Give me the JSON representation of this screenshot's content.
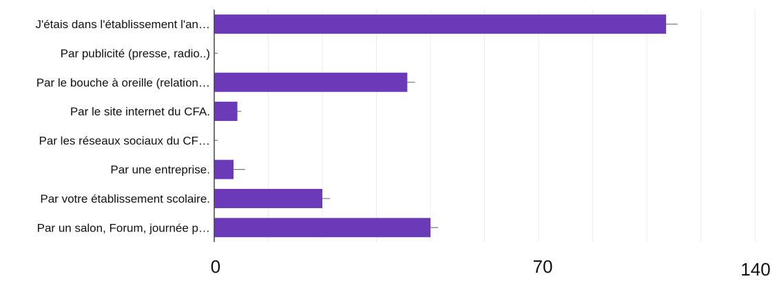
{
  "chart_data": {
    "type": "bar",
    "orientation": "horizontal",
    "categories": [
      "J'étais dans l'établissement l'an…",
      "Par publicité (presse, radio..)",
      "Par le bouche à oreille (relation…",
      "Par le site internet du CFA.",
      "Par les réseaux sociaux du CF…",
      "Par une entreprise.",
      "Par votre établissement scolaire.",
      "Par un salon, Forum, journée p…"
    ],
    "values": [
      117,
      0,
      50,
      6,
      0,
      5,
      28,
      56
    ],
    "error_bars": [
      3,
      0,
      2,
      1,
      0,
      3,
      2,
      2
    ],
    "x_ticks": [
      "0",
      "70",
      "140"
    ],
    "xlim": [
      0,
      140
    ],
    "grid": true,
    "bar_color": "#6a3ab8",
    "title": "",
    "xlabel": "",
    "ylabel": ""
  }
}
